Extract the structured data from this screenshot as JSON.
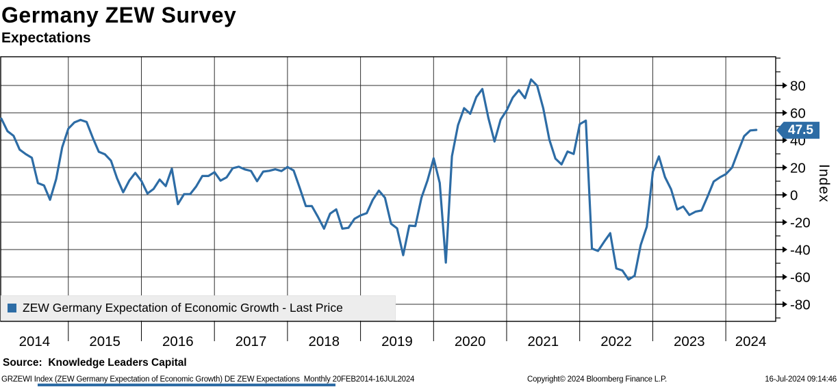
{
  "header": {
    "title": "Germany ZEW Survey",
    "subtitle": "Expectations"
  },
  "legend": {
    "label": "ZEW Germany Expectation of Economic Growth - Last Price",
    "swatch_color": "#2d6ca5"
  },
  "badge": {
    "value": "47.5",
    "bg": "#2d6ca5",
    "text_color": "#ffffff"
  },
  "y_axis": {
    "label": "Index"
  },
  "footer": {
    "source": "Source:  Knowledge Leaders Capital",
    "description": "GRZEWI Index (ZEW Germany Expectation of Economic Growth) DE ZEW Expectations  Monthly 20FEB2014-16JUL2024",
    "copyright": "Copyright© 2024 Bloomberg Finance L.P.",
    "timestamp": "16-Jul-2024 09:14:46"
  },
  "colors": {
    "line": "#2d6ca5",
    "grid": "#2f2f2f",
    "frame": "#000000",
    "legend_bg": "#ededed"
  },
  "chart_data": {
    "type": "line",
    "title": "Germany ZEW Survey - Expectations",
    "ylabel": "Index",
    "ylim": [
      -92.5,
      101
    ],
    "yticks": [
      80,
      60,
      40,
      20,
      0,
      -20,
      -40,
      -60,
      -80
    ],
    "y_minor_step": 10,
    "grid": true,
    "legend_position": "bottom-left",
    "x_year_ticks": [
      "2014",
      "2015",
      "2016",
      "2017",
      "2018",
      "2019",
      "2020",
      "2021",
      "2022",
      "2023",
      "2024"
    ],
    "last_price": 47.5,
    "series": [
      {
        "name": "ZEW Germany Expectation of Economic Growth - Last Price",
        "color": "#2d6ca5",
        "x": [
          "2014-02",
          "2014-03",
          "2014-04",
          "2014-05",
          "2014-06",
          "2014-07",
          "2014-08",
          "2014-09",
          "2014-10",
          "2014-11",
          "2014-12",
          "2015-01",
          "2015-02",
          "2015-03",
          "2015-04",
          "2015-05",
          "2015-06",
          "2015-07",
          "2015-08",
          "2015-09",
          "2015-10",
          "2015-11",
          "2015-12",
          "2016-01",
          "2016-02",
          "2016-03",
          "2016-04",
          "2016-05",
          "2016-06",
          "2016-07",
          "2016-08",
          "2016-09",
          "2016-10",
          "2016-11",
          "2016-12",
          "2017-01",
          "2017-02",
          "2017-03",
          "2017-04",
          "2017-05",
          "2017-06",
          "2017-07",
          "2017-08",
          "2017-09",
          "2017-10",
          "2017-11",
          "2017-12",
          "2018-01",
          "2018-02",
          "2018-03",
          "2018-04",
          "2018-05",
          "2018-06",
          "2018-07",
          "2018-08",
          "2018-09",
          "2018-10",
          "2018-11",
          "2018-12",
          "2019-01",
          "2019-02",
          "2019-03",
          "2019-04",
          "2019-05",
          "2019-06",
          "2019-07",
          "2019-08",
          "2019-09",
          "2019-10",
          "2019-11",
          "2019-12",
          "2020-01",
          "2020-02",
          "2020-03",
          "2020-04",
          "2020-05",
          "2020-06",
          "2020-07",
          "2020-08",
          "2020-09",
          "2020-10",
          "2020-11",
          "2020-12",
          "2021-01",
          "2021-02",
          "2021-03",
          "2021-04",
          "2021-05",
          "2021-06",
          "2021-07",
          "2021-08",
          "2021-09",
          "2021-10",
          "2021-11",
          "2021-12",
          "2022-01",
          "2022-02",
          "2022-03",
          "2022-04",
          "2022-05",
          "2022-06",
          "2022-07",
          "2022-08",
          "2022-09",
          "2022-10",
          "2022-11",
          "2022-12",
          "2023-01",
          "2023-02",
          "2023-03",
          "2023-04",
          "2023-05",
          "2023-06",
          "2023-07",
          "2023-08",
          "2023-09",
          "2023-10",
          "2023-11",
          "2023-12",
          "2024-01",
          "2024-02",
          "2024-03",
          "2024-04",
          "2024-05",
          "2024-06"
        ],
        "values": [
          55.7,
          46.6,
          43.2,
          33.1,
          29.8,
          27.1,
          8.6,
          6.9,
          -3.6,
          11.5,
          34.9,
          48.4,
          53.0,
          54.8,
          53.3,
          41.9,
          31.5,
          29.7,
          25.0,
          12.1,
          1.9,
          10.4,
          16.1,
          10.2,
          1.0,
          4.3,
          11.2,
          6.4,
          19.2,
          -6.8,
          0.5,
          0.5,
          6.2,
          13.8,
          13.8,
          16.6,
          10.4,
          12.8,
          19.5,
          20.6,
          18.6,
          17.5,
          10.0,
          17.0,
          17.6,
          18.7,
          17.4,
          20.4,
          17.8,
          5.1,
          -8.2,
          -8.2,
          -16.1,
          -24.7,
          -13.7,
          -10.6,
          -24.7,
          -24.1,
          -17.5,
          -15.0,
          -13.4,
          -3.6,
          3.1,
          -2.1,
          -21.1,
          -24.5,
          -44.1,
          -22.5,
          -22.8,
          -2.1,
          10.7,
          26.7,
          8.7,
          -49.5,
          28.2,
          51.0,
          63.4,
          59.3,
          71.5,
          77.4,
          56.1,
          39.0,
          55.0,
          61.8,
          71.2,
          76.6,
          70.7,
          84.4,
          79.8,
          63.3,
          40.4,
          26.5,
          22.3,
          31.7,
          29.9,
          51.7,
          54.3,
          -39.3,
          -41.0,
          -34.3,
          -28.0,
          -53.8,
          -55.3,
          -61.9,
          -59.2,
          -36.7,
          -23.3,
          16.9,
          28.1,
          13.0,
          4.1,
          -10.7,
          -8.5,
          -14.7,
          -12.3,
          -11.4,
          -1.1,
          9.8,
          12.8,
          15.2,
          19.9,
          31.7,
          42.9,
          47.1,
          47.5
        ]
      }
    ]
  }
}
